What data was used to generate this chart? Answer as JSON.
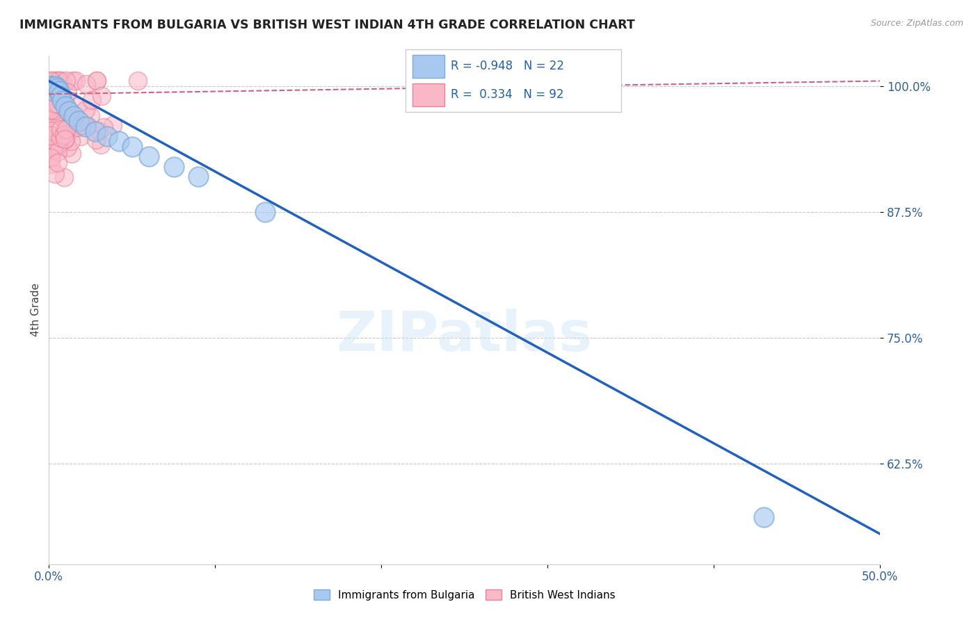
{
  "title": "IMMIGRANTS FROM BULGARIA VS BRITISH WEST INDIAN 4TH GRADE CORRELATION CHART",
  "source": "Source: ZipAtlas.com",
  "ylabel": "4th Grade",
  "xlim": [
    0.0,
    0.5
  ],
  "ylim": [
    0.525,
    1.03
  ],
  "xticks": [
    0.0,
    0.1,
    0.2,
    0.3,
    0.4,
    0.5
  ],
  "xticklabels": [
    "0.0%",
    "",
    "",
    "",
    "",
    "50.0%"
  ],
  "yticks": [
    0.625,
    0.75,
    0.875,
    1.0
  ],
  "yticklabels": [
    "62.5%",
    "75.0%",
    "87.5%",
    "100.0%"
  ],
  "blue_R": -0.948,
  "blue_N": 22,
  "pink_R": 0.334,
  "pink_N": 92,
  "blue_label": "Immigrants from Bulgaria",
  "pink_label": "British West Indians",
  "blue_color": "#a8c8f0",
  "blue_edge_color": "#7aaad8",
  "pink_color": "#f9b8c8",
  "pink_edge_color": "#e88098",
  "blue_line_color": "#2060c0",
  "pink_line_color": "#d06080",
  "blue_scatter_x": [
    0.001,
    0.002,
    0.003,
    0.004,
    0.005,
    0.006,
    0.007,
    0.008,
    0.01,
    0.012,
    0.015,
    0.018,
    0.022,
    0.028,
    0.035,
    0.042,
    0.05,
    0.06,
    0.075,
    0.09,
    0.13,
    0.43
  ],
  "blue_scatter_y": [
    1.0,
    1.0,
    0.995,
    1.0,
    0.998,
    0.995,
    0.99,
    0.985,
    0.98,
    0.975,
    0.97,
    0.965,
    0.96,
    0.955,
    0.95,
    0.945,
    0.94,
    0.93,
    0.92,
    0.91,
    0.875,
    0.572
  ],
  "blue_trendline_x0": 0.0,
  "blue_trendline_y0": 1.005,
  "blue_trendline_x1": 0.5,
  "blue_trendline_y1": 0.555,
  "pink_trendline_x0": 0.0,
  "pink_trendline_y0": 0.992,
  "pink_trendline_x1": 0.5,
  "pink_trendline_y1": 1.005,
  "watermark": "ZIPatlas",
  "background_color": "#ffffff",
  "grid_color": "#c8c8c8"
}
